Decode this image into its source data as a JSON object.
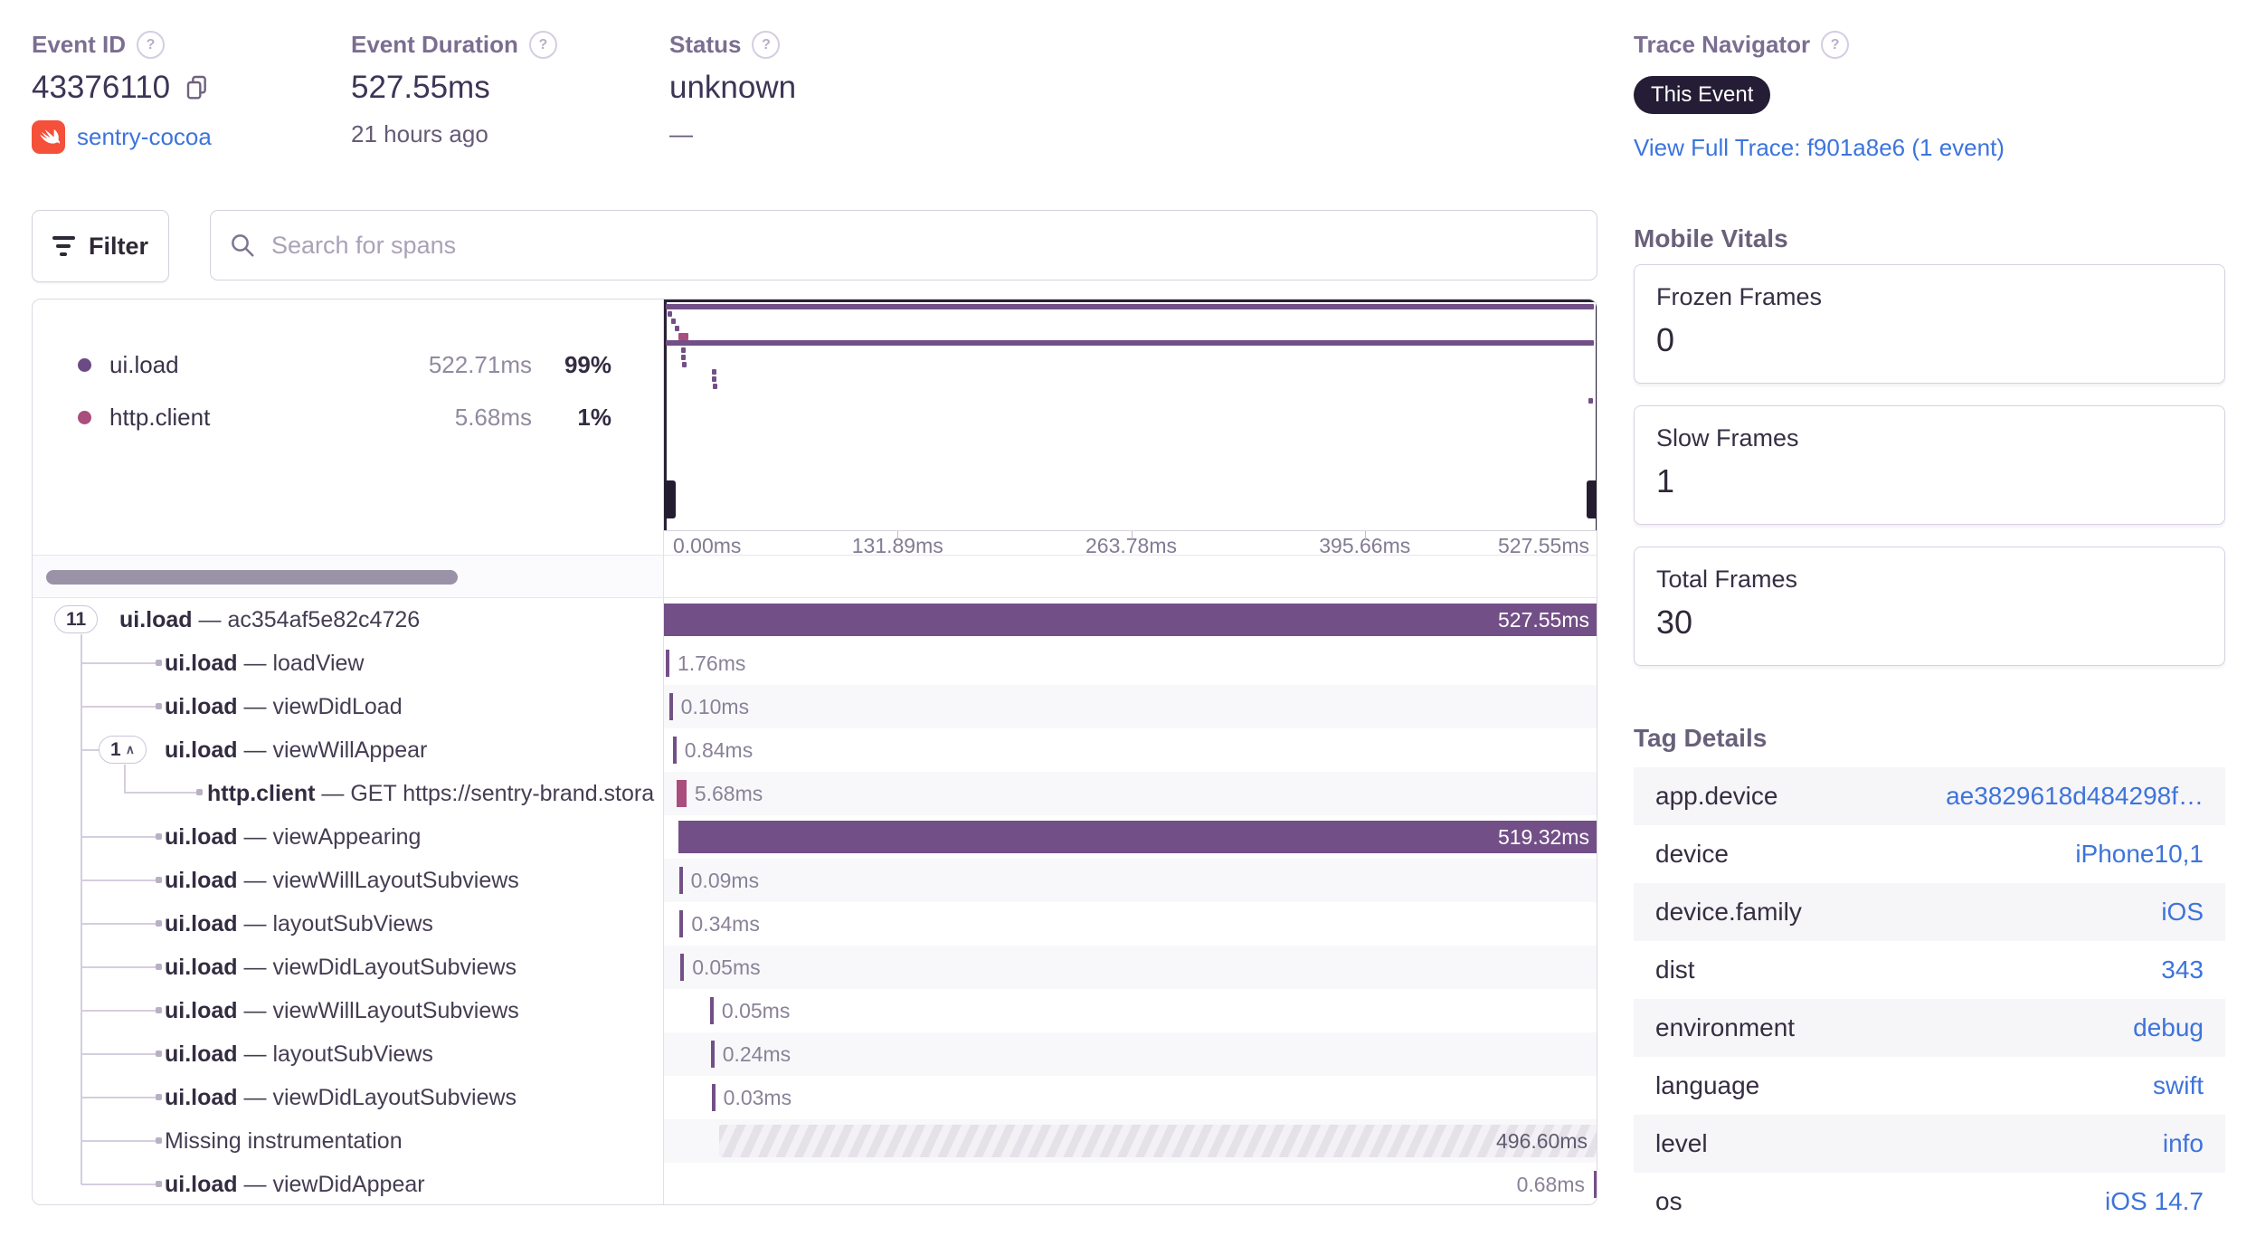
{
  "colors": {
    "purple": "#734F87",
    "pink": "#A94E7D",
    "link": "#3C74DD",
    "badge_bg": "#241D35"
  },
  "separator": "—",
  "header": {
    "event_id": {
      "label": "Event ID",
      "value": "43376110",
      "project": "sentry-cocoa"
    },
    "duration": {
      "label": "Event Duration",
      "value": "527.55ms",
      "age": "21 hours ago"
    },
    "status": {
      "label": "Status",
      "value": "unknown",
      "sub": "—"
    },
    "trace": {
      "label": "Trace Navigator",
      "badge": "This Event",
      "link": "View Full Trace: f901a8e6 (1 event)"
    }
  },
  "toolbar": {
    "filter": "Filter",
    "search_placeholder": "Search for spans"
  },
  "legend": {
    "items": [
      {
        "op": "ui.load",
        "duration": "522.71ms",
        "pct": "99%",
        "color": "#6C4A83"
      },
      {
        "op": "http.client",
        "duration": "5.68ms",
        "pct": "1%",
        "color": "#A94E7D"
      }
    ]
  },
  "timeline": {
    "total_ms": 527.55,
    "ticks": [
      "0.00ms",
      "131.89ms",
      "263.78ms",
      "395.66ms",
      "527.55ms"
    ]
  },
  "spans": [
    {
      "op": "ui.load",
      "name": "ac354af5e82c4726",
      "duration_label": "527.55ms",
      "start_ms": 0,
      "duration_ms": 527.55,
      "depth": 0,
      "kind": "ui",
      "pill": "11",
      "pill_chevron": false,
      "label_pos": "inside"
    },
    {
      "op": "ui.load",
      "name": "loadView",
      "duration_label": "1.76ms",
      "start_ms": 1.0,
      "duration_ms": 1.76,
      "depth": 1,
      "kind": "ui",
      "label_pos": "after"
    },
    {
      "op": "ui.load",
      "name": "viewDidLoad",
      "duration_label": "0.10ms",
      "start_ms": 2.9,
      "duration_ms": 0.1,
      "depth": 1,
      "kind": "ui",
      "label_pos": "after"
    },
    {
      "op": "ui.load",
      "name": "viewWillAppear",
      "duration_label": "0.84ms",
      "start_ms": 5.0,
      "duration_ms": 0.84,
      "depth": 1,
      "kind": "ui",
      "pill": "1",
      "pill_chevron": true,
      "label_pos": "after"
    },
    {
      "op": "http.client",
      "name": "GET https://sentry-brand.stora",
      "duration_label": "5.68ms",
      "start_ms": 7.0,
      "duration_ms": 5.68,
      "depth": 2,
      "kind": "http",
      "label_pos": "after"
    },
    {
      "op": "ui.load",
      "name": "viewAppearing",
      "duration_label": "519.32ms",
      "start_ms": 8.2,
      "duration_ms": 519.32,
      "depth": 1,
      "kind": "ui",
      "label_pos": "inside"
    },
    {
      "op": "ui.load",
      "name": "viewWillLayoutSubviews",
      "duration_label": "0.09ms",
      "start_ms": 8.5,
      "duration_ms": 0.09,
      "depth": 1,
      "kind": "ui",
      "label_pos": "after"
    },
    {
      "op": "ui.load",
      "name": "layoutSubViews",
      "duration_label": "0.34ms",
      "start_ms": 8.9,
      "duration_ms": 0.34,
      "depth": 1,
      "kind": "ui",
      "label_pos": "after"
    },
    {
      "op": "ui.load",
      "name": "viewDidLayoutSubviews",
      "duration_label": "0.05ms",
      "start_ms": 9.3,
      "duration_ms": 0.05,
      "depth": 1,
      "kind": "ui",
      "label_pos": "after"
    },
    {
      "op": "ui.load",
      "name": "viewWillLayoutSubviews",
      "duration_label": "0.05ms",
      "start_ms": 26.0,
      "duration_ms": 0.05,
      "depth": 1,
      "kind": "ui",
      "label_pos": "after"
    },
    {
      "op": "ui.load",
      "name": "layoutSubViews",
      "duration_label": "0.24ms",
      "start_ms": 26.4,
      "duration_ms": 0.24,
      "depth": 1,
      "kind": "ui",
      "label_pos": "after"
    },
    {
      "op": "ui.load",
      "name": "viewDidLayoutSubviews",
      "duration_label": "0.03ms",
      "start_ms": 26.9,
      "duration_ms": 0.03,
      "depth": 1,
      "kind": "ui",
      "label_pos": "after"
    },
    {
      "op": "",
      "name": "Missing instrumentation",
      "duration_label": "496.60ms",
      "start_ms": 30.95,
      "duration_ms": 496.6,
      "depth": 1,
      "kind": "missing",
      "label_pos": "inside_dark"
    },
    {
      "op": "ui.load",
      "name": "viewDidAppear",
      "duration_label": "0.68ms",
      "start_ms": 526.87,
      "duration_ms": 0.68,
      "depth": 1,
      "kind": "ui",
      "label_pos": "before"
    }
  ],
  "vitals": {
    "title": "Mobile Vitals",
    "cards": [
      {
        "label": "Frozen Frames",
        "value": "0"
      },
      {
        "label": "Slow Frames",
        "value": "1"
      },
      {
        "label": "Total Frames",
        "value": "30"
      }
    ]
  },
  "tags": {
    "title": "Tag Details",
    "rows": [
      {
        "key": "app.device",
        "value": "ae3829618d484298f…"
      },
      {
        "key": "device",
        "value": "iPhone10,1"
      },
      {
        "key": "device.family",
        "value": "iOS"
      },
      {
        "key": "dist",
        "value": "343"
      },
      {
        "key": "environment",
        "value": "debug"
      },
      {
        "key": "language",
        "value": "swift"
      },
      {
        "key": "level",
        "value": "info"
      },
      {
        "key": "os",
        "value": "iOS 14.7"
      }
    ]
  }
}
